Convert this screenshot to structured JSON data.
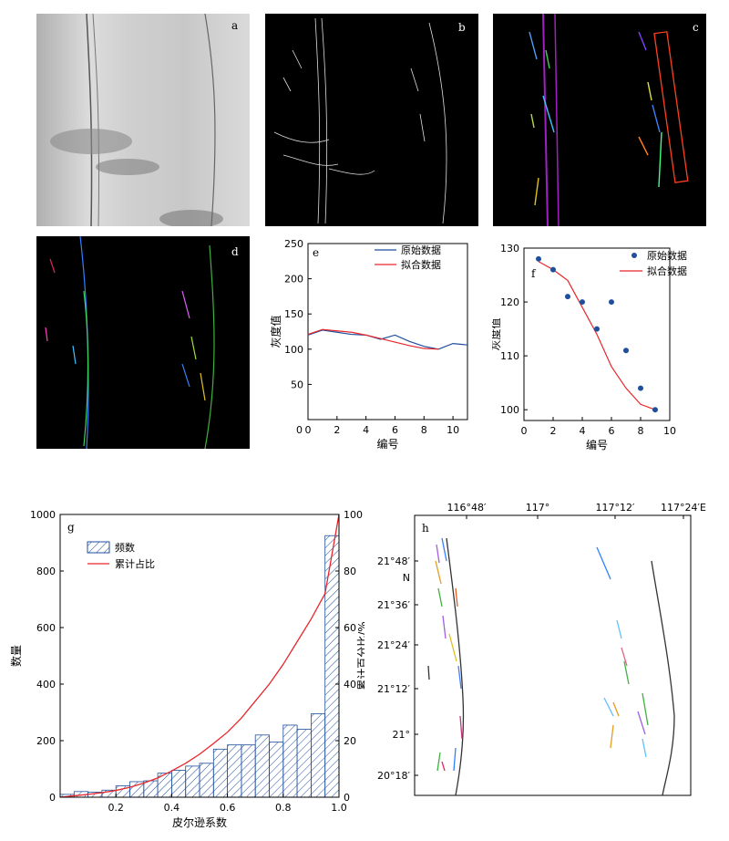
{
  "panels": {
    "a": "a",
    "b": "b",
    "c": "c",
    "d": "d",
    "e": "e",
    "f": "f",
    "g": "g",
    "h": "h"
  },
  "chart_data": [
    {
      "id": "e",
      "type": "line",
      "xlabel": "编号",
      "ylabel": "灰度值",
      "xlim": [
        0,
        11
      ],
      "ylim": [
        0,
        250
      ],
      "xticks": [
        0,
        2,
        4,
        6,
        8,
        10
      ],
      "yticks": [
        50,
        100,
        150,
        200,
        250
      ],
      "legend": "top-right",
      "series": [
        {
          "name": "原始数据",
          "color": "#1f4e9c",
          "x": [
            0,
            1,
            2,
            3,
            4,
            5,
            6,
            7,
            8,
            9,
            10,
            11
          ],
          "y": [
            120,
            127,
            124,
            121,
            120,
            114,
            120,
            111,
            104,
            100,
            108,
            106
          ]
        },
        {
          "name": "拟合数据",
          "color": "#e8262a",
          "x": [
            0,
            1,
            2,
            3,
            4,
            5,
            6,
            7,
            8,
            9
          ],
          "y": [
            121,
            128,
            126,
            124,
            120,
            115,
            110,
            105,
            101,
            100
          ]
        }
      ]
    },
    {
      "id": "f",
      "type": "scatter",
      "xlabel": "编号",
      "ylabel": "灰度值",
      "xlim": [
        0,
        10
      ],
      "ylim": [
        98,
        130
      ],
      "xticks": [
        0,
        2,
        4,
        6,
        8,
        10
      ],
      "yticks": [
        100,
        110,
        120,
        130
      ],
      "legend": "top-right",
      "series": [
        {
          "name": "原始数据",
          "color": "#1f4e9c",
          "kind": "scatter",
          "x": [
            1,
            2,
            3,
            4,
            5,
            6,
            7,
            8,
            9
          ],
          "y": [
            128,
            126,
            121,
            120,
            115,
            120,
            111,
            104,
            100
          ]
        },
        {
          "name": "拟合数据",
          "color": "#e8262a",
          "kind": "line",
          "x": [
            1,
            2,
            3,
            4,
            5,
            6,
            7,
            8,
            9
          ],
          "y": [
            127.5,
            126,
            124,
            119,
            114,
            108,
            104,
            101,
            100
          ]
        }
      ]
    },
    {
      "id": "g",
      "type": "bar",
      "xlabel": "皮尔逊系数",
      "ylabel": "数量",
      "ylabel2": "累计百分比/%",
      "xlim": [
        0,
        1.0
      ],
      "ylim": [
        0,
        1000
      ],
      "ylim2": [
        0,
        100
      ],
      "xticks": [
        "0.2",
        "0.4",
        "0.6",
        "0.8",
        "1.0"
      ],
      "yticks": [
        0,
        200,
        400,
        600,
        800,
        1000
      ],
      "yticks2": [
        0,
        20,
        40,
        60,
        80,
        100
      ],
      "legend": "top-left",
      "bin_width": 0.05,
      "series": [
        {
          "name": "频数",
          "color": "#1f4e9c",
          "x": [
            0.025,
            0.075,
            0.125,
            0.175,
            0.225,
            0.275,
            0.325,
            0.375,
            0.425,
            0.475,
            0.525,
            0.575,
            0.625,
            0.675,
            0.725,
            0.775,
            0.825,
            0.875,
            0.925,
            0.975
          ],
          "values": [
            10,
            20,
            18,
            25,
            40,
            55,
            58,
            85,
            95,
            110,
            120,
            170,
            185,
            185,
            220,
            195,
            255,
            240,
            295,
            925
          ]
        },
        {
          "name": "累计占比",
          "color": "#e8262a",
          "x": [
            0.0,
            0.05,
            0.1,
            0.15,
            0.2,
            0.25,
            0.3,
            0.35,
            0.4,
            0.45,
            0.5,
            0.55,
            0.6,
            0.65,
            0.7,
            0.75,
            0.8,
            0.85,
            0.9,
            0.95,
            1.0
          ],
          "values": [
            0,
            0.5,
            1.0,
            1.6,
            2.4,
            3.5,
            5.0,
            6.8,
            9.3,
            12.0,
            15.2,
            19.0,
            23.0,
            28.0,
            34.0,
            40.0,
            47.0,
            55.0,
            63.0,
            72.0,
            100.0
          ]
        }
      ]
    },
    {
      "id": "h",
      "type": "map",
      "lon_ticks": [
        "116°48′",
        "117°",
        "117°12′",
        "117°24′E"
      ],
      "lat_ticks": [
        "21°48′",
        "N",
        "21°36′",
        "21°24′",
        "21°12′",
        "21°",
        "20°18′"
      ]
    }
  ]
}
